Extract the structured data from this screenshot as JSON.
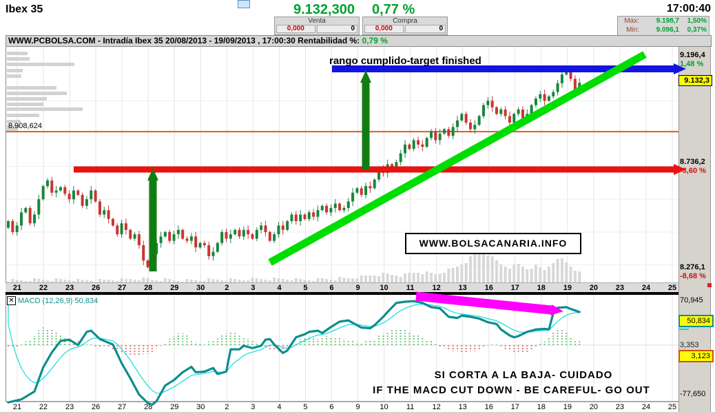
{
  "header": {
    "symbol": "Ibex 35",
    "price": "9.132,300",
    "change_pct": "0,77 %",
    "time": "17:00:40",
    "venta": {
      "label": "Venta",
      "price": "0,000",
      "qty": "0"
    },
    "compra": {
      "label": "Compra",
      "price": "0,000",
      "qty": "0"
    },
    "max": {
      "label": "Max:",
      "value": "9.198,7",
      "pct": "1,50%"
    },
    "min": {
      "label": "Min:",
      "value": "9.096,1",
      "pct": "0,37%"
    }
  },
  "title_bar": {
    "text": "WWW.PCBOLSA.COM - Intradía Ibex 35 20/08/2013 - 19/09/2013 , 17:00:30 Rentabilidad %:",
    "rentabilidad": "0,79 %"
  },
  "annotations_text": {
    "target_text": "rango cumplido-target finished",
    "watermark": "WWW.BOLSACANARIA.INFO",
    "macd_warning_es": "SI CORTA A LA BAJA- CUIDADO",
    "macd_warning_en": "IF THE MACD CUT DOWN - BE CAREFUL- GO OUT"
  },
  "price_axis": {
    "upper_value": "9.196,4",
    "upper_pct": "1,48 %",
    "current": "9.132,3",
    "mid_line": "8.908,624",
    "resistance_value": "8.736,2",
    "resistance_pct": "-3,60 %",
    "lower_value": "8.276,1",
    "lower_pct": "-8,68 %"
  },
  "macd_panel": {
    "checkbox_glyph": "✕",
    "title": "MACD (12,26,9)  50,834",
    "scale_top": "70,945",
    "current": "50,834",
    "tick_hidden": "3,353",
    "signal_current": "3,123",
    "scale_bottom": "-77,650"
  },
  "x_axis_labels": [
    "21",
    "22",
    "23",
    "26",
    "27",
    "28",
    "29",
    "30",
    "2",
    "3",
    "4",
    "5",
    "6",
    "9",
    "10",
    "11",
    "12",
    "13",
    "16",
    "17",
    "18",
    "19",
    "20",
    "23",
    "24",
    "25"
  ],
  "colors": {
    "green_text": "#00a12e",
    "red_text": "#cc1111",
    "candle_up": "#19863e",
    "candle_down": "#cb3434",
    "macd_line": "#0e8d8d",
    "signal_line": "#22dddd",
    "hist_up": "#74c97a",
    "hist_down": "#d87d7d",
    "arrow_blue": "#1414e0",
    "arrow_red": "#ea1111",
    "arrow_green_dark": "#117d11",
    "trend_green": "#00dd00",
    "arrow_magenta": "#ff00ff",
    "level_orange": "#e2581e",
    "highlight_yellow": "#ffff00",
    "panel_gray": "#d6d3cc",
    "volume_gray": "#d8d8d8"
  },
  "chart_data": {
    "main": {
      "type": "candlestick",
      "symbol": "Ibex 35",
      "interval": "intraday",
      "date_range": "20/08/2013 - 19/09/2013",
      "x_labels": [
        "21",
        "22",
        "23",
        "26",
        "27",
        "28",
        "29",
        "30",
        "2",
        "3",
        "4",
        "5",
        "6",
        "9",
        "10",
        "11",
        "12",
        "13",
        "16",
        "17",
        "18",
        "19",
        "20",
        "23",
        "24",
        "25"
      ],
      "candles_per_day": 6,
      "ylim": [
        8220,
        9290
      ],
      "grid_prices": [
        9050,
        8750,
        8600,
        8450,
        8300
      ],
      "levels": {
        "target_high": 9196.4,
        "current": 9132.3,
        "pivot": 8908.624,
        "resistance": 8736.2,
        "low": 8276.1
      },
      "closes": [
        8500,
        8450,
        8480,
        8540,
        8560,
        8490,
        8530,
        8600,
        8660,
        8686,
        8630,
        8640,
        8655,
        8625,
        8600,
        8640,
        8620,
        8570,
        8600,
        8640,
        8590,
        8530,
        8550,
        8510,
        8480,
        8440,
        8490,
        8460,
        8420,
        8440,
        8390,
        8320,
        8290,
        8350,
        8400,
        8430,
        8450,
        8410,
        8440,
        8460,
        8420,
        8410,
        8430,
        8380,
        8400,
        8390,
        8340,
        8360,
        8400,
        8450,
        8420,
        8440,
        8460,
        8430,
        8460,
        8440,
        8420,
        8460,
        8480,
        8450,
        8410,
        8440,
        8480,
        8460,
        8500,
        8530,
        8500,
        8530,
        8510,
        8540,
        8520,
        8550,
        8570,
        8540,
        8560,
        8580,
        8550,
        8560,
        8590,
        8630,
        8650,
        8620,
        8660,
        8650,
        8690,
        8740,
        8720,
        8760,
        8740,
        8770,
        8810,
        8850,
        8830,
        8870,
        8850,
        8840,
        8880,
        8910,
        8870,
        8900,
        8920,
        8890,
        8930,
        8960,
        8990,
        8950,
        8920,
        8940,
        8980,
        9030,
        9050,
        9020,
        8990,
        9010,
        8980,
        8950,
        8990,
        9010,
        8970,
        8990,
        9030,
        9060,
        9080,
        9050,
        9070,
        9090,
        9130,
        9170,
        9196,
        9150,
        9100,
        9132
      ],
      "volume_profile_rows": [
        [
          75,
          30
        ],
        [
          83,
          33
        ],
        [
          91,
          98
        ],
        [
          100,
          23
        ],
        [
          108,
          21
        ],
        [
          125,
          72
        ],
        [
          133,
          87
        ],
        [
          141,
          58
        ],
        [
          149,
          53
        ],
        [
          156,
          110
        ],
        [
          165,
          47
        ],
        [
          174,
          20
        ],
        [
          181,
          18
        ],
        [
          185,
          16
        ]
      ],
      "volume_waypoints": [
        [
          0,
          3
        ],
        [
          10,
          4
        ],
        [
          20,
          3
        ],
        [
          30,
          5
        ],
        [
          40,
          3
        ],
        [
          50,
          4
        ],
        [
          60,
          5
        ],
        [
          70,
          4
        ],
        [
          78,
          6
        ],
        [
          82,
          9
        ],
        [
          86,
          12
        ],
        [
          90,
          10
        ],
        [
          94,
          15
        ],
        [
          98,
          12
        ],
        [
          102,
          20
        ],
        [
          105,
          30
        ],
        [
          107,
          42
        ],
        [
          109,
          45
        ],
        [
          111,
          36
        ],
        [
          113,
          26
        ],
        [
          115,
          22
        ],
        [
          117,
          26
        ],
        [
          119,
          20
        ],
        [
          121,
          24
        ],
        [
          123,
          18
        ],
        [
          125,
          30
        ],
        [
          127,
          34
        ],
        [
          129,
          24
        ],
        [
          131,
          14
        ]
      ]
    },
    "macd": {
      "type": "line",
      "label": "MACD (12,26,9)",
      "current": 50.834,
      "signal_current": 3.123,
      "ylim": [
        -90.3,
        78.9
      ],
      "scale_labels": [
        70.945,
        -77.65
      ],
      "signal_ema_alpha": 0.25,
      "signal_seed": 78,
      "points": [
        [
          0,
          -95
        ],
        [
          3,
          -90
        ],
        [
          6,
          -77
        ],
        [
          8,
          -37
        ],
        [
          10,
          -12
        ],
        [
          12,
          7
        ],
        [
          14,
          9
        ],
        [
          16,
          0
        ],
        [
          18,
          22
        ],
        [
          19,
          24
        ],
        [
          21,
          10
        ],
        [
          24,
          1
        ],
        [
          26,
          -30
        ],
        [
          28,
          -55
        ],
        [
          30,
          -82
        ],
        [
          32,
          -96
        ],
        [
          33,
          -99
        ],
        [
          34,
          -93
        ],
        [
          36,
          -67
        ],
        [
          38,
          -58
        ],
        [
          40,
          -45
        ],
        [
          42,
          -36
        ],
        [
          43,
          -45
        ],
        [
          45,
          -44
        ],
        [
          47,
          -38
        ],
        [
          48,
          -48
        ],
        [
          50,
          -44
        ],
        [
          51,
          -7
        ],
        [
          53,
          -7
        ],
        [
          54,
          -1
        ],
        [
          56,
          -5
        ],
        [
          58,
          -1
        ],
        [
          59,
          9
        ],
        [
          60,
          10
        ],
        [
          61,
          1
        ],
        [
          63,
          -13
        ],
        [
          64,
          -9
        ],
        [
          66,
          13
        ],
        [
          68,
          18
        ],
        [
          69,
          22
        ],
        [
          71,
          24
        ],
        [
          72,
          20
        ],
        [
          74,
          30
        ],
        [
          76,
          39
        ],
        [
          78,
          41
        ],
        [
          79,
          37
        ],
        [
          81,
          29
        ],
        [
          83,
          28
        ],
        [
          84,
          33
        ],
        [
          86,
          47
        ],
        [
          87,
          55
        ],
        [
          89,
          70
        ],
        [
          91,
          72
        ],
        [
          93,
          73
        ],
        [
          95,
          70
        ],
        [
          97,
          63
        ],
        [
          99,
          61
        ],
        [
          101,
          47
        ],
        [
          103,
          45
        ],
        [
          104,
          49
        ],
        [
          106,
          47
        ],
        [
          108,
          44
        ],
        [
          110,
          38
        ],
        [
          112,
          35
        ],
        [
          113,
          26
        ],
        [
          115,
          16
        ],
        [
          116,
          13
        ],
        [
          117,
          15
        ],
        [
          119,
          22
        ],
        [
          121,
          26
        ],
        [
          123,
          27
        ],
        [
          124,
          26
        ],
        [
          125,
          53
        ],
        [
          126,
          62
        ],
        [
          128,
          63
        ],
        [
          129,
          60
        ],
        [
          131,
          55
        ]
      ],
      "histogram_waypoints": [
        [
          0,
          -3
        ],
        [
          2,
          -3
        ],
        [
          3,
          2
        ],
        [
          5,
          8
        ],
        [
          8,
          30
        ],
        [
          11,
          22
        ],
        [
          14,
          8
        ],
        [
          17,
          4
        ],
        [
          20,
          -2
        ],
        [
          23,
          -3
        ],
        [
          24,
          -8
        ],
        [
          27,
          -16
        ],
        [
          29,
          -18
        ],
        [
          32,
          -14
        ],
        [
          34,
          -6
        ],
        [
          36,
          4
        ],
        [
          39,
          20
        ],
        [
          41,
          16
        ],
        [
          43,
          4
        ],
        [
          45,
          2
        ],
        [
          47,
          8
        ],
        [
          51,
          22
        ],
        [
          54,
          12
        ],
        [
          57,
          4
        ],
        [
          59,
          -4
        ],
        [
          62,
          -10
        ],
        [
          64,
          -6
        ],
        [
          66,
          6
        ],
        [
          69,
          15
        ],
        [
          71,
          10
        ],
        [
          73,
          14
        ],
        [
          76,
          12
        ],
        [
          79,
          6
        ],
        [
          81,
          4
        ],
        [
          84,
          10
        ],
        [
          87,
          22
        ],
        [
          90,
          26
        ],
        [
          93,
          18
        ],
        [
          96,
          10
        ],
        [
          98,
          2
        ],
        [
          100,
          -6
        ],
        [
          104,
          -12
        ],
        [
          107,
          -10
        ],
        [
          109,
          -4
        ],
        [
          111,
          2
        ],
        [
          113,
          -2
        ],
        [
          115,
          -10
        ],
        [
          118,
          -14
        ],
        [
          120,
          -8
        ],
        [
          122,
          2
        ],
        [
          124,
          12
        ],
        [
          126,
          28
        ],
        [
          128,
          20
        ],
        [
          130,
          8
        ]
      ]
    }
  },
  "arrows": [
    {
      "name": "red-resistance-arrow",
      "color": "#ea1111",
      "width": 9,
      "from": [
        107,
        246
      ],
      "to": [
        978,
        246
      ],
      "head": true
    },
    {
      "name": "blue-target-arrow",
      "color": "#1414e0",
      "width": 10,
      "from": [
        482,
        100
      ],
      "to": [
        978,
        100
      ],
      "head": true
    },
    {
      "name": "green-trendline",
      "color": "#00dd00",
      "width": 11,
      "from": [
        392,
        381
      ],
      "to": [
        936,
        79
      ],
      "head": false
    },
    {
      "name": "green-up-arrow-1",
      "color": "#117d11",
      "width": 11,
      "from": [
        222,
        394
      ],
      "to": [
        222,
        262
      ],
      "head": true
    },
    {
      "name": "green-up-arrow-2",
      "color": "#117d11",
      "width": 11,
      "from": [
        531,
        246
      ],
      "to": [
        531,
        120
      ],
      "head": true
    },
    {
      "name": "magenta-macd-arrow",
      "color": "#ff00ff",
      "width": 13,
      "from": [
        604,
        430
      ],
      "to": [
        800,
        450
      ],
      "head": true
    }
  ]
}
